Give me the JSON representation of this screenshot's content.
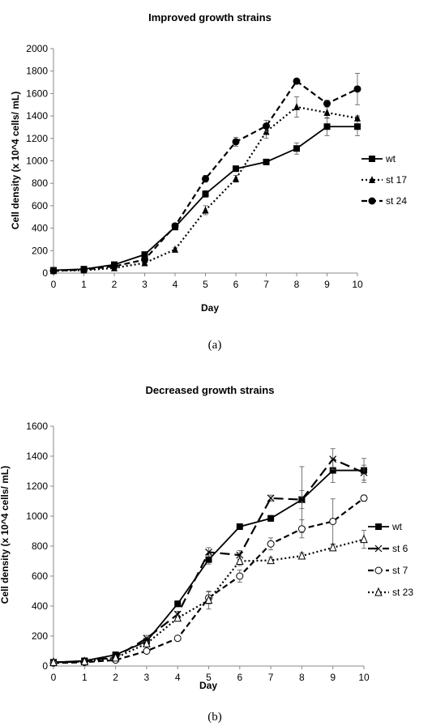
{
  "chart_data": [
    {
      "type": "line",
      "title": "Improved growth strains",
      "xlabel": "Day",
      "ylabel": "Cell density (x 10^4 cells/ mL)",
      "caption": "(a)",
      "xlim": [
        0,
        10
      ],
      "ylim": [
        0,
        2000
      ],
      "x_ticks": [
        "0",
        "1",
        "2",
        "3",
        "4",
        "5",
        "6",
        "7",
        "8",
        "9",
        "10"
      ],
      "y_ticks": [
        "0",
        "200",
        "400",
        "600",
        "800",
        "1000",
        "1200",
        "1400",
        "1600",
        "1800",
        "2000"
      ],
      "x": [
        0,
        1,
        2,
        3,
        4,
        5,
        6,
        7,
        8,
        9,
        10
      ],
      "grid": false,
      "legend_position": "right",
      "series": [
        {
          "name": "wt",
          "marker": "square",
          "dash": "solid",
          "values": [
            25,
            35,
            75,
            165,
            410,
            705,
            930,
            990,
            1110,
            1305,
            1305
          ],
          "err": [
            10,
            10,
            10,
            15,
            20,
            30,
            20,
            20,
            50,
            80,
            80
          ]
        },
        {
          "name": "st 17",
          "marker": "triangle",
          "dash": "dotted",
          "values": [
            20,
            25,
            45,
            90,
            210,
            560,
            840,
            1260,
            1480,
            1430,
            1380
          ],
          "err": [
            5,
            5,
            8,
            10,
            15,
            40,
            30,
            60,
            90,
            50,
            20
          ]
        },
        {
          "name": "st 24",
          "marker": "circle",
          "dash": "dashed",
          "values": [
            20,
            30,
            60,
            120,
            420,
            840,
            1170,
            1310,
            1710,
            1510,
            1640
          ],
          "err": [
            5,
            5,
            10,
            15,
            25,
            30,
            40,
            50,
            20,
            30,
            140
          ]
        }
      ]
    },
    {
      "type": "line",
      "title": "Decreased growth strains",
      "xlabel": "Day",
      "ylabel": "Cell density (x 10^4 cells/ mL)",
      "caption": "(b)",
      "xlim": [
        0,
        10
      ],
      "ylim": [
        0,
        1600
      ],
      "x_ticks": [
        "0",
        "1",
        "2",
        "3",
        "4",
        "5",
        "6",
        "7",
        "8",
        "9",
        "10"
      ],
      "y_ticks": [
        "0",
        "200",
        "400",
        "600",
        "800",
        "1000",
        "1200",
        "1400",
        "1600"
      ],
      "x": [
        0,
        1,
        2,
        3,
        4,
        5,
        6,
        7,
        8,
        9,
        10
      ],
      "grid": false,
      "legend_position": "right",
      "series": [
        {
          "name": "wt",
          "marker": "square",
          "dash": "solid",
          "values": [
            25,
            35,
            75,
            165,
            415,
            710,
            930,
            985,
            1110,
            1305,
            1305
          ],
          "err": [
            10,
            10,
            10,
            15,
            20,
            30,
            20,
            20,
            60,
            80,
            80
          ]
        },
        {
          "name": "st 6",
          "marker": "x",
          "dash": "longdash",
          "values": [
            25,
            30,
            60,
            185,
            345,
            760,
            740,
            1120,
            1110,
            1380,
            1290
          ],
          "err": [
            5,
            5,
            10,
            20,
            20,
            30,
            30,
            20,
            220,
            70,
            50
          ]
        },
        {
          "name": "st 7",
          "marker": "circle-open",
          "dash": "dashed",
          "values": [
            20,
            25,
            40,
            100,
            185,
            455,
            600,
            815,
            915,
            965,
            1120
          ],
          "err": [
            5,
            5,
            5,
            10,
            15,
            40,
            40,
            40,
            60,
            150,
            20
          ]
        },
        {
          "name": "st 23",
          "marker": "triangle-open",
          "dash": "dotted",
          "values": [
            25,
            30,
            55,
            150,
            320,
            440,
            700,
            705,
            735,
            790,
            845
          ],
          "err": [
            5,
            5,
            10,
            15,
            20,
            60,
            30,
            20,
            20,
            20,
            60
          ]
        }
      ]
    }
  ]
}
